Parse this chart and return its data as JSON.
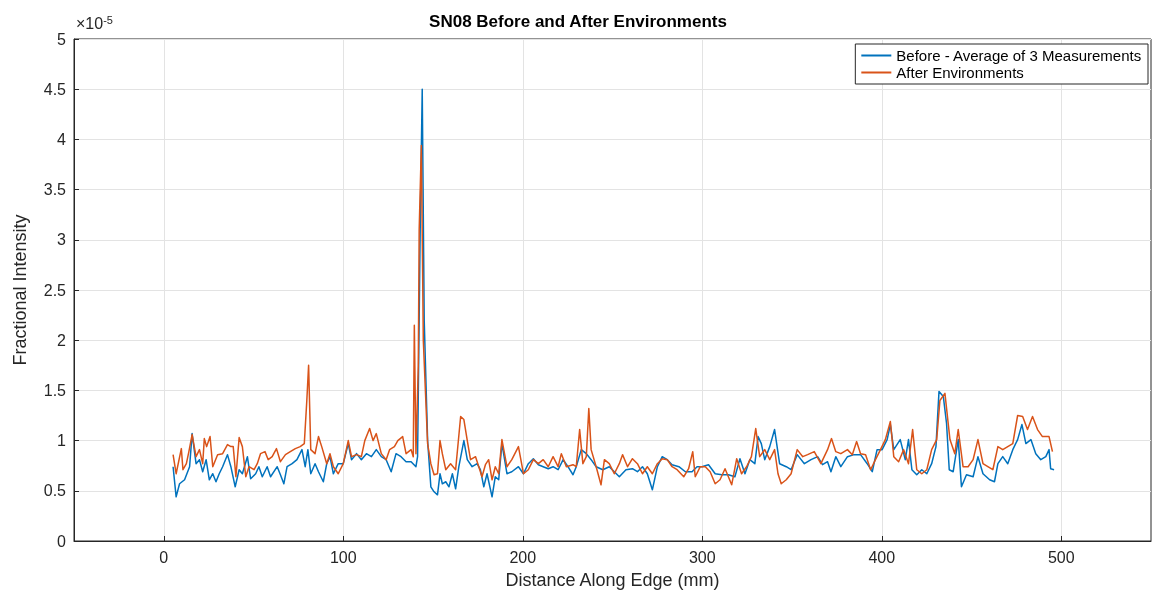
{
  "chart_data": {
    "type": "line",
    "title": "SN08 Before and After Environments",
    "xlabel": "Distance Along Edge (mm)",
    "ylabel": "Fractional Intensity",
    "annotations": [
      "×10$^{-5}$"
    ],
    "xlim": [
      -50,
      550
    ],
    "xticks": [
      0,
      100,
      200,
      300,
      400,
      500
    ],
    "ylim": [
      0,
      5
    ],
    "yticks": [
      0,
      0.5,
      1,
      1.5,
      2,
      2.5,
      3,
      3.5,
      4,
      4.5,
      5
    ],
    "grid": true,
    "legend": "top right",
    "marker": "none",
    "line_style": "solid",
    "series": [
      {
        "name": "Before - Average of 3 Measurements",
        "color": "#0072bd",
        "x": [
          5.2,
          6.9,
          8.8,
          11.6,
          14.4,
          15.8,
          18.0,
          19.9,
          21.7,
          23.6,
          25.4,
          27.3,
          29.1,
          30.9,
          32.8,
          35.5,
          37.4,
          39.8,
          42.0,
          43.8,
          46.6,
          48.4,
          51.2,
          53.0,
          54.9,
          57.6,
          59.5,
          63.2,
          65.0,
          66.9,
          68.7,
          71.5,
          74.2,
          77.0,
          78.8,
          80.3,
          81.9,
          84.3,
          86.2,
          88.9,
          90.8,
          92.6,
          94.5,
          97.2,
          100.0,
          102.8,
          104.6,
          107.4,
          110.1,
          112.9,
          115.7,
          118.4,
          121.2,
          123.9,
          126.7,
          129.4,
          132.2,
          135.0,
          137.8,
          140.5,
          141.4,
          143.0,
          144.0,
          145.1,
          147.0,
          148.8,
          150.6,
          152.5,
          153.9,
          155.2,
          157.1,
          158.9,
          160.8,
          162.6,
          164.4,
          167.2,
          169.1,
          171.8,
          174.6,
          176.4,
          178.3,
          180.1,
          182.9,
          184.7,
          186.6,
          188.4,
          191.2,
          193.9,
          197.6,
          200.4,
          203.1,
          205.9,
          208.7,
          211.4,
          214.2,
          216.9,
          219.7,
          222.5,
          225.2,
          228.0,
          229.8,
          232.6,
          235.4,
          238.1,
          240.9,
          244.6,
          248.2,
          251.0,
          253.8,
          257.5,
          261.1,
          263.9,
          266.7,
          269.4,
          272.2,
          275.0,
          277.7,
          280.5,
          283.2,
          287.0,
          290.6,
          294.3,
          297.1,
          299.8,
          303.5,
          307.2,
          310.9,
          314.6,
          318.2,
          321.0,
          323.8,
          326.5,
          329.3,
          331.1,
          332.9,
          334.8,
          337.6,
          340.3,
          343.1,
          346.8,
          349.5,
          352.9,
          356.9,
          360.6,
          364.3,
          367.0,
          369.8,
          371.7,
          374.4,
          377.2,
          380.9,
          384.6,
          388.2,
          391.9,
          394.7,
          397.4,
          400.2,
          403.0,
          404.8,
          406.7,
          410.3,
          413.1,
          414.9,
          416.8,
          419.5,
          422.3,
          425.1,
          427.8,
          430.2,
          431.9,
          434.3,
          436.1,
          437.6,
          439.8,
          442.6,
          444.4,
          447.2,
          450.9,
          453.6,
          456.4,
          460.1,
          462.8,
          464.7,
          467.4,
          470.2,
          473.0,
          475.7,
          478.1,
          480.3,
          483.1,
          485.8,
          488.6,
          491.4,
          493.2,
          494.1,
          496.0
        ],
        "values": [
          0.74,
          0.44,
          0.57,
          0.61,
          0.74,
          1.07,
          0.77,
          0.81,
          0.69,
          0.81,
          0.61,
          0.67,
          0.59,
          0.67,
          0.74,
          0.86,
          0.74,
          0.54,
          0.71,
          0.67,
          0.84,
          0.62,
          0.67,
          0.74,
          0.64,
          0.74,
          0.64,
          0.74,
          0.66,
          0.57,
          0.74,
          0.77,
          0.81,
          0.91,
          0.74,
          0.91,
          0.67,
          0.77,
          0.69,
          0.59,
          0.77,
          0.84,
          0.67,
          0.77,
          0.77,
          0.97,
          0.81,
          0.87,
          0.81,
          0.87,
          0.84,
          0.91,
          0.84,
          0.81,
          0.69,
          0.87,
          0.84,
          0.79,
          0.79,
          0.74,
          0.84,
          3.3,
          4.5,
          2.2,
          1.0,
          0.54,
          0.49,
          0.46,
          0.67,
          0.57,
          0.59,
          0.54,
          0.67,
          0.52,
          0.74,
          1.0,
          0.81,
          0.74,
          0.77,
          0.71,
          0.54,
          0.67,
          0.44,
          0.64,
          0.61,
          0.97,
          0.67,
          0.69,
          0.74,
          0.67,
          0.77,
          0.82,
          0.76,
          0.74,
          0.72,
          0.74,
          0.71,
          0.81,
          0.74,
          0.66,
          0.74,
          0.91,
          0.87,
          0.81,
          0.74,
          0.71,
          0.74,
          0.69,
          0.64,
          0.71,
          0.72,
          0.69,
          0.74,
          0.67,
          0.51,
          0.74,
          0.84,
          0.81,
          0.76,
          0.74,
          0.69,
          0.69,
          0.74,
          0.74,
          0.76,
          0.67,
          0.66,
          0.66,
          0.64,
          0.82,
          0.67,
          0.81,
          0.77,
          1.04,
          0.97,
          0.81,
          0.94,
          1.11,
          0.77,
          0.74,
          0.71,
          0.86,
          0.77,
          0.81,
          0.84,
          0.76,
          0.79,
          0.69,
          0.84,
          0.74,
          0.84,
          0.86,
          0.86,
          0.77,
          0.69,
          0.91,
          0.91,
          1.01,
          1.16,
          0.91,
          1.01,
          0.81,
          1.01,
          0.71,
          0.66,
          0.71,
          0.67,
          0.77,
          0.94,
          1.49,
          1.44,
          1.17,
          0.71,
          0.69,
          1.01,
          0.54,
          0.66,
          0.64,
          0.84,
          0.67,
          0.61,
          0.59,
          0.77,
          0.84,
          0.77,
          0.91,
          1.01,
          1.16,
          0.97,
          1.01,
          0.87,
          0.81,
          0.84,
          0.91,
          0.72,
          0.71
        ]
      },
      {
        "name": "After Environments",
        "color": "#d95319",
        "x": [
          5.2,
          6.9,
          9.8,
          10.7,
          12.6,
          14.0,
          15.8,
          18.0,
          19.9,
          21.7,
          22.6,
          23.9,
          25.8,
          27.3,
          30.0,
          32.8,
          35.5,
          37.4,
          38.7,
          40.2,
          42.0,
          43.8,
          45.7,
          47.5,
          50.3,
          52.1,
          53.9,
          56.4,
          58.2,
          60.4,
          62.8,
          65.0,
          67.8,
          70.5,
          73.3,
          76.0,
          78.3,
          79.7,
          80.7,
          81.9,
          84.3,
          86.2,
          88.0,
          90.8,
          92.6,
          94.5,
          97.2,
          100.0,
          102.8,
          104.6,
          107.4,
          110.1,
          112.0,
          114.7,
          116.6,
          118.4,
          121.2,
          123.9,
          125.8,
          128.5,
          130.4,
          133.1,
          135.0,
          137.8,
          139.0,
          139.6,
          140.5,
          141.8,
          142.3,
          143.5,
          144.6,
          147.0,
          148.8,
          150.6,
          152.5,
          153.9,
          155.2,
          157.1,
          159.8,
          162.6,
          165.4,
          167.2,
          169.1,
          170.9,
          173.7,
          175.5,
          177.3,
          179.2,
          181.0,
          182.9,
          184.7,
          186.6,
          188.4,
          191.2,
          193.9,
          197.6,
          200.4,
          203.1,
          205.9,
          208.7,
          211.4,
          214.2,
          216.9,
          219.7,
          221.5,
          224.3,
          228.0,
          229.8,
          231.7,
          233.5,
          235.4,
          236.8,
          238.1,
          240.9,
          243.6,
          245.5,
          248.2,
          251.0,
          253.8,
          255.6,
          258.4,
          261.1,
          263.9,
          266.7,
          269.4,
          272.2,
          275.0,
          277.7,
          280.5,
          283.2,
          286.0,
          289.7,
          292.4,
          294.7,
          296.1,
          298.9,
          301.7,
          304.4,
          307.2,
          309.9,
          312.7,
          316.4,
          319.2,
          321.9,
          324.7,
          327.4,
          329.8,
          332.0,
          334.8,
          337.6,
          340.3,
          342.2,
          344.0,
          346.8,
          349.5,
          352.9,
          356.0,
          358.7,
          362.4,
          366.1,
          369.8,
          372.0,
          374.4,
          377.2,
          380.9,
          383.6,
          386.0,
          388.2,
          391.0,
          393.8,
          396.5,
          399.3,
          402.0,
          404.8,
          406.7,
          409.4,
          412.2,
          414.9,
          417.2,
          419.5,
          422.3,
          425.1,
          427.8,
          430.6,
          432.4,
          435.2,
          438.0,
          440.7,
          442.6,
          445.3,
          448.1,
          450.9,
          453.6,
          456.4,
          459.1,
          461.9,
          464.7,
          467.4,
          470.2,
          473.0,
          475.7,
          478.5,
          481.2,
          484.0,
          486.8,
          489.5,
          493.2,
          495.1
        ],
        "values": [
          0.86,
          0.67,
          0.92,
          0.71,
          0.77,
          0.89,
          1.06,
          0.84,
          0.91,
          0.77,
          1.02,
          0.94,
          1.04,
          0.74,
          0.86,
          0.87,
          0.96,
          0.94,
          0.94,
          0.64,
          1.03,
          0.94,
          0.64,
          0.74,
          0.71,
          0.77,
          0.87,
          0.89,
          0.81,
          0.84,
          0.92,
          0.79,
          0.86,
          0.89,
          0.92,
          0.94,
          0.97,
          1.4,
          1.75,
          0.91,
          0.87,
          1.04,
          0.94,
          0.77,
          0.87,
          0.74,
          0.67,
          0.77,
          1.0,
          0.84,
          0.86,
          0.84,
          1.0,
          1.12,
          1.0,
          1.07,
          0.87,
          0.81,
          0.91,
          0.94,
          1.0,
          1.04,
          0.87,
          0.91,
          0.84,
          2.15,
          0.87,
          1.74,
          3.1,
          3.94,
          2.0,
          0.97,
          0.77,
          0.66,
          0.67,
          1.0,
          0.87,
          0.71,
          0.77,
          0.71,
          1.24,
          1.21,
          1.0,
          0.81,
          0.84,
          0.74,
          0.64,
          0.76,
          0.81,
          0.61,
          0.74,
          0.67,
          1.01,
          0.74,
          0.81,
          0.94,
          0.67,
          0.71,
          0.81,
          0.77,
          0.81,
          0.74,
          0.84,
          0.74,
          0.87,
          0.74,
          0.76,
          0.74,
          1.11,
          0.77,
          0.84,
          1.32,
          0.91,
          0.74,
          0.56,
          0.81,
          0.77,
          0.67,
          0.77,
          0.86,
          0.74,
          0.82,
          0.77,
          0.67,
          0.74,
          0.67,
          0.77,
          0.82,
          0.81,
          0.74,
          0.71,
          0.64,
          0.72,
          0.89,
          0.64,
          0.74,
          0.74,
          0.69,
          0.57,
          0.61,
          0.72,
          0.56,
          0.82,
          0.67,
          0.74,
          0.84,
          1.12,
          0.84,
          0.91,
          0.81,
          0.91,
          0.67,
          0.57,
          0.61,
          0.67,
          0.91,
          0.84,
          0.86,
          0.89,
          0.77,
          0.91,
          1.02,
          0.89,
          0.87,
          0.91,
          0.86,
          0.99,
          0.87,
          0.86,
          0.71,
          0.81,
          0.91,
          1.01,
          1.19,
          0.84,
          0.79,
          0.91,
          0.77,
          1.11,
          0.71,
          0.67,
          0.71,
          0.91,
          1.01,
          1.4,
          1.47,
          1.01,
          0.87,
          1.11,
          0.74,
          0.74,
          0.81,
          1.01,
          0.77,
          0.74,
          0.71,
          0.94,
          0.91,
          0.94,
          0.97,
          1.25,
          1.24,
          1.11,
          1.24,
          1.11,
          1.04,
          1.04,
          0.89
        ]
      }
    ]
  }
}
